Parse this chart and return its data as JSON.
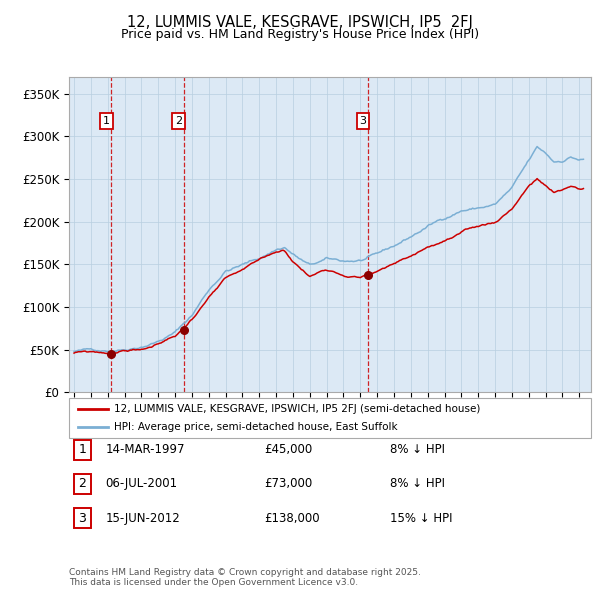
{
  "title": "12, LUMMIS VALE, KESGRAVE, IPSWICH, IP5  2FJ",
  "subtitle": "Price paid vs. HM Land Registry's House Price Index (HPI)",
  "legend_line1": "12, LUMMIS VALE, KESGRAVE, IPSWICH, IP5 2FJ (semi-detached house)",
  "legend_line2": "HPI: Average price, semi-detached house, East Suffolk",
  "footer": "Contains HM Land Registry data © Crown copyright and database right 2025.\nThis data is licensed under the Open Government Licence v3.0.",
  "sales": [
    {
      "label": "1",
      "date": "14-MAR-1997",
      "price": 45000,
      "note": "8% ↓ HPI",
      "x_year": 1997.2
    },
    {
      "label": "2",
      "date": "06-JUL-2001",
      "price": 73000,
      "note": "8% ↓ HPI",
      "x_year": 2001.5
    },
    {
      "label": "3",
      "date": "15-JUN-2012",
      "price": 138000,
      "note": "15% ↓ HPI",
      "x_year": 2012.45
    }
  ],
  "hpi_color": "#7bafd4",
  "price_color": "#cc0000",
  "sale_dot_color": "#8b0000",
  "dashed_line_color": "#cc0000",
  "background_color": "#dce9f5",
  "ylim": [
    0,
    370000
  ],
  "xlim_start": 1994.7,
  "xlim_end": 2025.7,
  "hpi_anchors": [
    [
      1995.0,
      48000
    ],
    [
      1996.0,
      49500
    ],
    [
      1997.0,
      50000
    ],
    [
      1998.0,
      53000
    ],
    [
      1999.0,
      58000
    ],
    [
      2000.0,
      65000
    ],
    [
      2001.0,
      75000
    ],
    [
      2002.0,
      95000
    ],
    [
      2003.0,
      125000
    ],
    [
      2004.0,
      148000
    ],
    [
      2005.0,
      155000
    ],
    [
      2006.0,
      162000
    ],
    [
      2007.0,
      173000
    ],
    [
      2007.5,
      176000
    ],
    [
      2008.0,
      168000
    ],
    [
      2009.0,
      154000
    ],
    [
      2010.0,
      160000
    ],
    [
      2011.0,
      157000
    ],
    [
      2012.0,
      158000
    ],
    [
      2013.0,
      163000
    ],
    [
      2014.0,
      172000
    ],
    [
      2015.0,
      183000
    ],
    [
      2016.0,
      195000
    ],
    [
      2017.0,
      205000
    ],
    [
      2018.0,
      215000
    ],
    [
      2019.0,
      218000
    ],
    [
      2020.0,
      222000
    ],
    [
      2021.0,
      240000
    ],
    [
      2022.0,
      270000
    ],
    [
      2022.5,
      285000
    ],
    [
      2023.0,
      278000
    ],
    [
      2023.5,
      268000
    ],
    [
      2024.0,
      270000
    ],
    [
      2024.5,
      275000
    ],
    [
      2025.0,
      272000
    ]
  ],
  "price_anchors": [
    [
      1995.0,
      46000
    ],
    [
      1996.0,
      46500
    ],
    [
      1997.0,
      45000
    ],
    [
      1997.2,
      45000
    ],
    [
      1998.0,
      48000
    ],
    [
      1999.0,
      50000
    ],
    [
      2000.0,
      55000
    ],
    [
      2001.0,
      65000
    ],
    [
      2001.5,
      73000
    ],
    [
      2002.0,
      85000
    ],
    [
      2003.0,
      110000
    ],
    [
      2004.0,
      130000
    ],
    [
      2005.0,
      138000
    ],
    [
      2006.0,
      148000
    ],
    [
      2007.0,
      158000
    ],
    [
      2007.5,
      160000
    ],
    [
      2008.0,
      148000
    ],
    [
      2009.0,
      130000
    ],
    [
      2010.0,
      140000
    ],
    [
      2011.0,
      135000
    ],
    [
      2012.0,
      133000
    ],
    [
      2012.45,
      138000
    ],
    [
      2013.0,
      140000
    ],
    [
      2014.0,
      148000
    ],
    [
      2015.0,
      157000
    ],
    [
      2016.0,
      168000
    ],
    [
      2017.0,
      175000
    ],
    [
      2018.0,
      182000
    ],
    [
      2019.0,
      188000
    ],
    [
      2020.0,
      193000
    ],
    [
      2021.0,
      210000
    ],
    [
      2022.0,
      238000
    ],
    [
      2022.5,
      245000
    ],
    [
      2023.0,
      237000
    ],
    [
      2023.5,
      228000
    ],
    [
      2024.0,
      230000
    ],
    [
      2024.5,
      235000
    ],
    [
      2025.0,
      232000
    ]
  ]
}
